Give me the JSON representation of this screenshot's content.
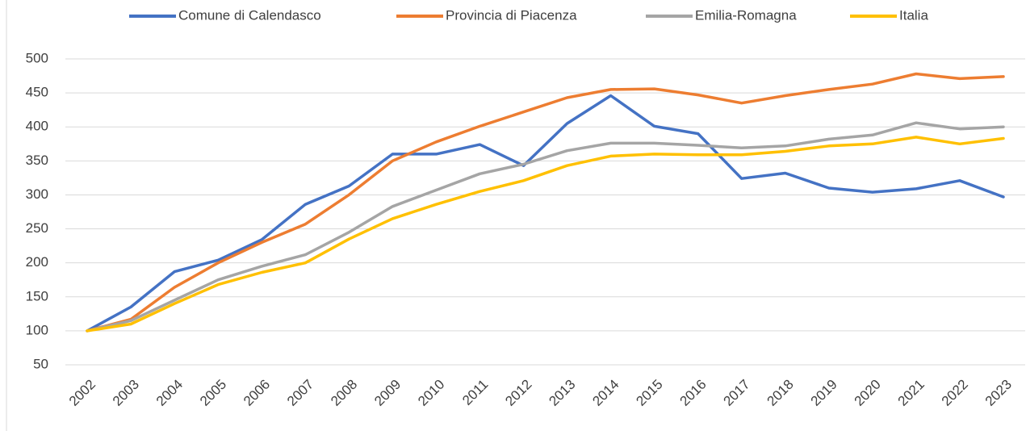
{
  "chart_data": {
    "type": "line",
    "categories": [
      "2002",
      "2003",
      "2004",
      "2005",
      "2006",
      "2007",
      "2008",
      "2009",
      "2010",
      "2011",
      "2012",
      "2013",
      "2014",
      "2015",
      "2016",
      "2017",
      "2018",
      "2019",
      "2020",
      "2021",
      "2022",
      "2023"
    ],
    "series": [
      {
        "name": "Comune di Calendasco",
        "color": "#4472c4",
        "values": [
          100,
          135,
          187,
          204,
          234,
          286,
          313,
          360,
          360,
          374,
          343,
          405,
          446,
          401,
          390,
          324,
          332,
          310,
          304,
          309,
          321,
          297
        ]
      },
      {
        "name": "Provincia di Piacenza",
        "color": "#ed7d31",
        "values": [
          100,
          117,
          164,
          200,
          230,
          257,
          300,
          350,
          378,
          401,
          422,
          443,
          455,
          456,
          447,
          435,
          446,
          455,
          463,
          478,
          471,
          474
        ]
      },
      {
        "name": "Emilia-Romagna",
        "color": "#a5a5a5",
        "values": [
          100,
          115,
          145,
          175,
          195,
          212,
          245,
          283,
          307,
          331,
          345,
          365,
          376,
          376,
          373,
          369,
          372,
          382,
          388,
          406,
          397,
          400
        ]
      },
      {
        "name": "Italia",
        "color": "#ffc000",
        "values": [
          100,
          110,
          140,
          168,
          186,
          200,
          235,
          265,
          286,
          305,
          321,
          343,
          357,
          360,
          359,
          359,
          364,
          372,
          375,
          385,
          375,
          383
        ]
      }
    ],
    "ylim": [
      50,
      500
    ],
    "yticks": [
      50,
      100,
      150,
      200,
      250,
      300,
      350,
      400,
      450,
      500
    ],
    "grid": true,
    "legend": "top"
  }
}
